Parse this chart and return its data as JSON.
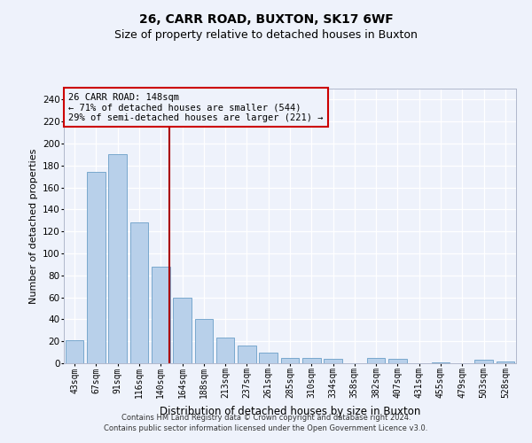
{
  "title": "26, CARR ROAD, BUXTON, SK17 6WF",
  "subtitle": "Size of property relative to detached houses in Buxton",
  "xlabel": "Distribution of detached houses by size in Buxton",
  "ylabel": "Number of detached properties",
  "categories": [
    "43sqm",
    "67sqm",
    "91sqm",
    "116sqm",
    "140sqm",
    "164sqm",
    "188sqm",
    "213sqm",
    "237sqm",
    "261sqm",
    "285sqm",
    "310sqm",
    "334sqm",
    "358sqm",
    "382sqm",
    "407sqm",
    "431sqm",
    "455sqm",
    "479sqm",
    "503sqm",
    "528sqm"
  ],
  "values": [
    21,
    174,
    190,
    128,
    88,
    60,
    40,
    23,
    16,
    10,
    5,
    5,
    4,
    0,
    5,
    4,
    0,
    1,
    0,
    3,
    2
  ],
  "bar_color": "#b8d0ea",
  "bar_edge_color": "#6a9fc8",
  "ylim": [
    0,
    250
  ],
  "yticks": [
    0,
    20,
    40,
    60,
    80,
    100,
    120,
    140,
    160,
    180,
    200,
    220,
    240
  ],
  "vline_x": 4.42,
  "annotation_line1": "26 CARR ROAD: 148sqm",
  "annotation_line2": "← 71% of detached houses are smaller (544)",
  "annotation_line3": "29% of semi-detached houses are larger (221) →",
  "footer_line1": "Contains HM Land Registry data © Crown copyright and database right 2024.",
  "footer_line2": "Contains public sector information licensed under the Open Government Licence v3.0.",
  "bg_color": "#eef2fb",
  "grid_color": "#ffffff",
  "ann_rect_color": "#cc0000",
  "vline_color": "#aa0000",
  "title_fontsize": 10,
  "subtitle_fontsize": 9,
  "ylabel_fontsize": 8,
  "xlabel_fontsize": 8.5,
  "tick_fontsize": 7,
  "ann_fontsize": 7.5,
  "footer_fontsize": 6
}
